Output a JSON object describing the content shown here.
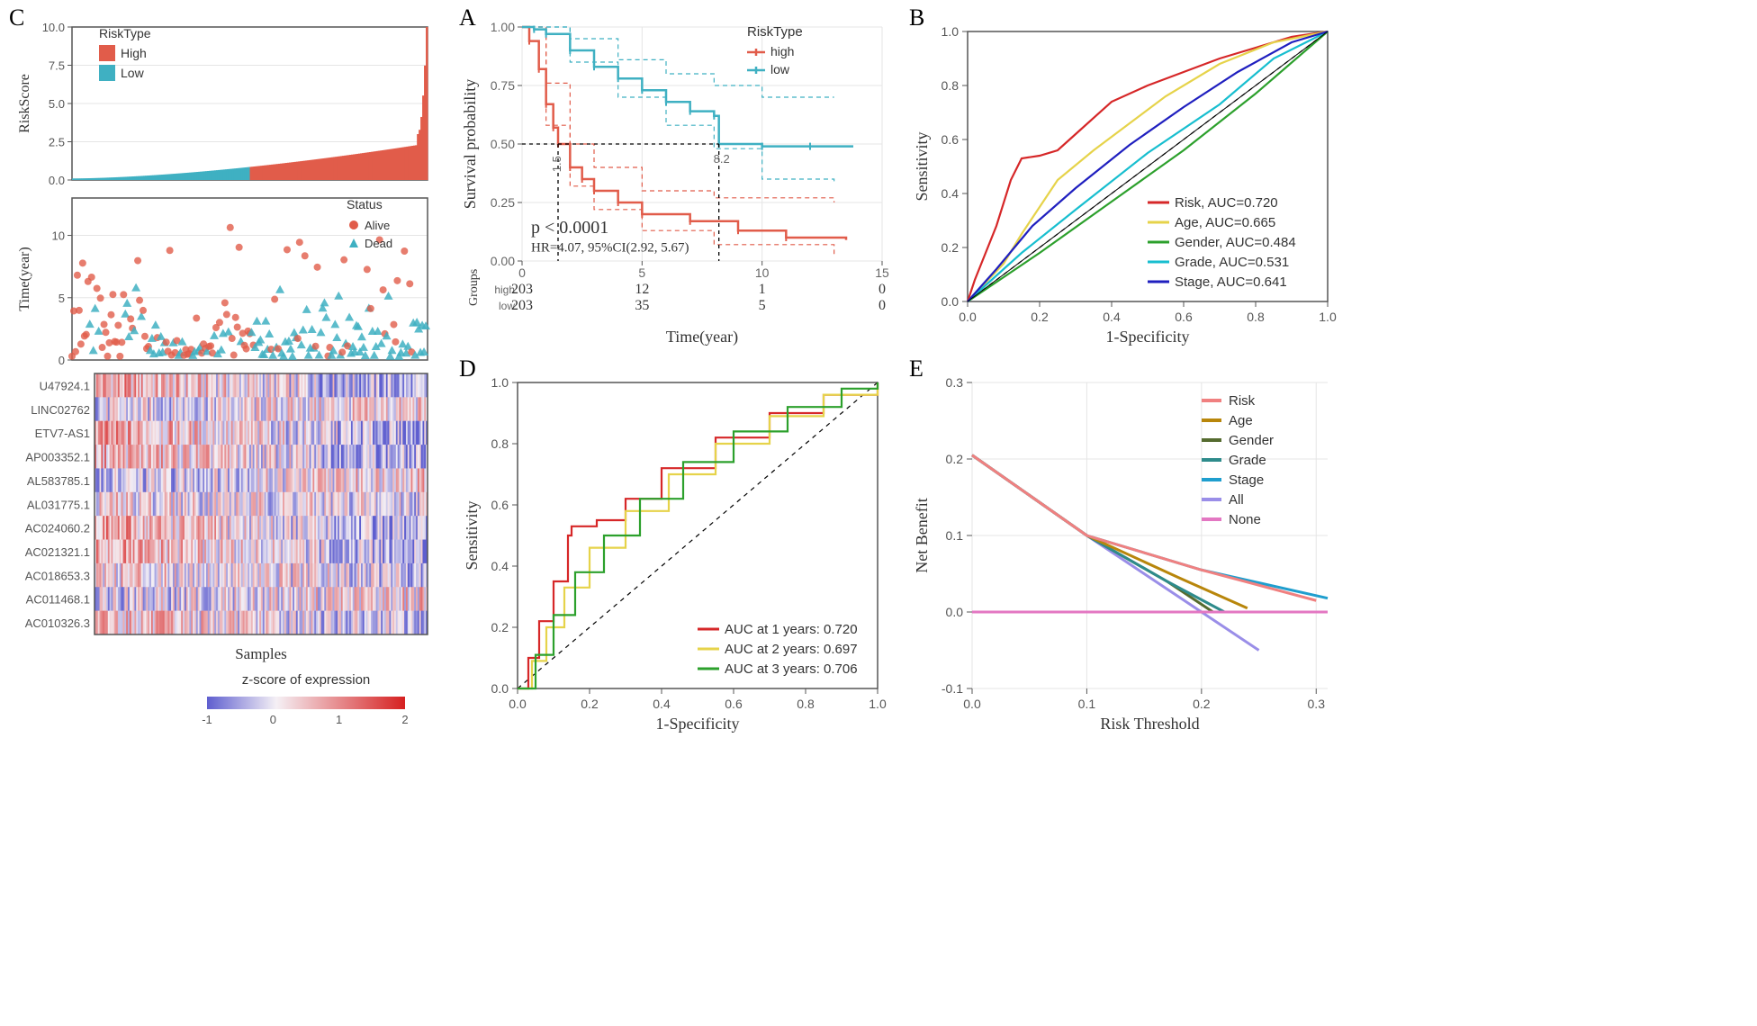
{
  "colors": {
    "high": "#e15c4a",
    "low": "#3fb0c2",
    "risk": "#d62728",
    "age": "#e6d34a",
    "gender": "#2ca02c",
    "grade": "#17becf",
    "stage": "#1f1fbf",
    "all": "#9a8ee8",
    "none": "#e377c2",
    "dca_risk": "#f08080",
    "dca_age": "#b8860b",
    "dca_gender": "#556b2f",
    "dca_grade": "#2e8b8b",
    "dca_stage": "#1f9ece",
    "grid": "#e5e5e5",
    "axis": "#555555",
    "panel_border": "#555555",
    "heatmap_low": "#5e5ecf",
    "heatmap_mid": "#f5f0f5",
    "heatmap_high": "#d62020"
  },
  "panelA": {
    "label": "A",
    "y_label": "Survival probability",
    "x_label": "Time(year)",
    "groups_label": "Groups",
    "legend_title": "RiskType",
    "legend_items": [
      "high",
      "low"
    ],
    "pval": "p < 0.0001",
    "hr": "HR=4.07, 95%CI(2.92, 5.67)",
    "median_marks": {
      "high": "1.5",
      "low": "8.2"
    },
    "x_ticks": [
      0,
      5,
      10,
      15
    ],
    "y_ticks": [
      0.0,
      0.25,
      0.5,
      0.75,
      1.0
    ],
    "risk_table": {
      "rows": [
        "high",
        "low"
      ],
      "values": [
        [
          "203",
          "12",
          "1",
          "0"
        ],
        [
          "203",
          "35",
          "5",
          "0"
        ]
      ]
    },
    "km": {
      "high": {
        "x": [
          0,
          0.3,
          0.7,
          1,
          1.3,
          1.5,
          2,
          2.5,
          3,
          4,
          5,
          7,
          9,
          11,
          13.5
        ],
        "y": [
          1.0,
          0.94,
          0.82,
          0.67,
          0.57,
          0.5,
          0.4,
          0.35,
          0.3,
          0.25,
          0.2,
          0.17,
          0.13,
          0.1,
          0.09
        ]
      },
      "low": {
        "x": [
          0,
          0.5,
          1,
          2,
          3,
          4,
          5,
          6,
          7,
          8,
          8.2,
          10,
          12,
          13.8
        ],
        "y": [
          1.0,
          0.99,
          0.97,
          0.9,
          0.83,
          0.78,
          0.73,
          0.68,
          0.64,
          0.62,
          0.5,
          0.49,
          0.49,
          0.49
        ]
      },
      "high_ci_upper": {
        "x": [
          0,
          1,
          2,
          3,
          5,
          8,
          13
        ],
        "y": [
          1.0,
          0.76,
          0.5,
          0.4,
          0.3,
          0.27,
          0.25
        ]
      },
      "high_ci_lower": {
        "x": [
          0,
          1,
          2,
          3,
          5,
          8,
          13
        ],
        "y": [
          1.0,
          0.58,
          0.32,
          0.22,
          0.13,
          0.07,
          0.03
        ]
      },
      "low_ci_upper": {
        "x": [
          0,
          2,
          4,
          6,
          8,
          10,
          13
        ],
        "y": [
          1.0,
          0.95,
          0.86,
          0.8,
          0.75,
          0.7,
          0.7
        ]
      },
      "low_ci_lower": {
        "x": [
          0,
          2,
          4,
          6,
          8,
          10,
          13
        ],
        "y": [
          1.0,
          0.85,
          0.7,
          0.58,
          0.48,
          0.35,
          0.34
        ]
      }
    }
  },
  "panelB": {
    "label": "B",
    "y_label": "Sensitivity",
    "x_label": "1-Specificity",
    "x_ticks": [
      0.0,
      0.2,
      0.4,
      0.6,
      0.8,
      1.0
    ],
    "y_ticks": [
      0.0,
      0.2,
      0.4,
      0.6,
      0.8,
      1.0
    ],
    "legend": [
      {
        "label": "Risk, AUC=0.720",
        "color_key": "risk"
      },
      {
        "label": "Age, AUC=0.665",
        "color_key": "age"
      },
      {
        "label": "Gender, AUC=0.484",
        "color_key": "gender"
      },
      {
        "label": "Grade, AUC=0.531",
        "color_key": "grade"
      },
      {
        "label": "Stage, AUC=0.641",
        "color_key": "stage"
      }
    ],
    "roc": {
      "risk": {
        "x": [
          0,
          0.02,
          0.05,
          0.08,
          0.12,
          0.15,
          0.2,
          0.25,
          0.3,
          0.4,
          0.5,
          0.6,
          0.7,
          0.8,
          0.9,
          1.0
        ],
        "y": [
          0,
          0.08,
          0.18,
          0.28,
          0.45,
          0.53,
          0.54,
          0.56,
          0.62,
          0.74,
          0.8,
          0.85,
          0.9,
          0.94,
          0.98,
          1.0
        ]
      },
      "age": {
        "x": [
          0,
          0.05,
          0.1,
          0.15,
          0.25,
          0.35,
          0.45,
          0.55,
          0.7,
          0.85,
          1.0
        ],
        "y": [
          0,
          0.07,
          0.14,
          0.25,
          0.45,
          0.56,
          0.66,
          0.76,
          0.88,
          0.96,
          1.0
        ]
      },
      "gender": {
        "x": [
          0,
          0.2,
          0.4,
          0.6,
          0.8,
          1.0
        ],
        "y": [
          0,
          0.18,
          0.37,
          0.56,
          0.77,
          1.0
        ]
      },
      "grade": {
        "x": [
          0,
          0.15,
          0.3,
          0.5,
          0.7,
          0.85,
          1.0
        ],
        "y": [
          0,
          0.18,
          0.34,
          0.55,
          0.73,
          0.9,
          1.0
        ]
      },
      "stage": {
        "x": [
          0,
          0.08,
          0.18,
          0.3,
          0.45,
          0.6,
          0.75,
          0.9,
          1.0
        ],
        "y": [
          0,
          0.12,
          0.28,
          0.42,
          0.58,
          0.72,
          0.85,
          0.96,
          1.0
        ]
      }
    }
  },
  "panelC": {
    "label": "C",
    "riskscore": {
      "y_label": "RiskScore",
      "y_ticks": [
        0.0,
        2.5,
        5.0,
        7.5,
        10.0
      ],
      "legend_title": "RiskType",
      "legend_items": [
        "High",
        "Low"
      ],
      "n": 200,
      "split": 100
    },
    "scatter": {
      "y_label": "Time(year)",
      "y_ticks": [
        0,
        5,
        10
      ],
      "legend_title": "Status",
      "legend_items": [
        "Alive",
        "Dead"
      ]
    },
    "heatmap": {
      "rows": [
        "U47924.1",
        "LINC02762",
        "ETV7-AS1",
        "AP003352.1",
        "AL583785.1",
        "AL031775.1",
        "AC024060.2",
        "AC021321.1",
        "AC018653.3",
        "AC011468.1",
        "AC010326.3"
      ],
      "x_label": "Samples",
      "colorbar_label": "z-score of expression",
      "colorbar_ticks": [
        -1,
        0,
        1,
        2
      ]
    }
  },
  "panelD": {
    "label": "D",
    "y_label": "Sensitivity",
    "x_label": "1-Specificity",
    "x_ticks": [
      0.0,
      0.2,
      0.4,
      0.6,
      0.8,
      1.0
    ],
    "y_ticks": [
      0.0,
      0.2,
      0.4,
      0.6,
      0.8,
      1.0
    ],
    "legend": [
      {
        "label": "AUC at 1 years: 0.720",
        "color_key": "risk"
      },
      {
        "label": "AUC at 2 years: 0.697",
        "color_key": "age"
      },
      {
        "label": "AUC at 3 years: 0.706",
        "color_key": "gender"
      }
    ],
    "roc": {
      "y1": {
        "x": [
          0,
          0.03,
          0.06,
          0.1,
          0.14,
          0.15,
          0.22,
          0.3,
          0.4,
          0.55,
          0.7,
          0.85,
          1.0
        ],
        "y": [
          0,
          0.1,
          0.22,
          0.35,
          0.5,
          0.53,
          0.55,
          0.62,
          0.72,
          0.82,
          0.9,
          0.96,
          1.0
        ]
      },
      "y2": {
        "x": [
          0,
          0.04,
          0.08,
          0.13,
          0.2,
          0.3,
          0.42,
          0.55,
          0.7,
          0.85,
          1.0
        ],
        "y": [
          0,
          0.09,
          0.2,
          0.33,
          0.46,
          0.58,
          0.7,
          0.8,
          0.89,
          0.96,
          1.0
        ]
      },
      "y3": {
        "x": [
          0,
          0.05,
          0.1,
          0.16,
          0.24,
          0.34,
          0.46,
          0.6,
          0.75,
          0.9,
          1.0
        ],
        "y": [
          0,
          0.11,
          0.24,
          0.38,
          0.5,
          0.62,
          0.74,
          0.84,
          0.92,
          0.98,
          1.0
        ]
      }
    }
  },
  "panelE": {
    "label": "E",
    "y_label": "Net Benefit",
    "x_label": "Risk Threshold",
    "x_ticks": [
      0.0,
      0.1,
      0.2,
      0.3
    ],
    "y_ticks": [
      -0.1,
      0.0,
      0.1,
      0.2,
      0.3
    ],
    "legend": [
      {
        "label": "Risk",
        "color_key": "dca_risk"
      },
      {
        "label": "Age",
        "color_key": "dca_age"
      },
      {
        "label": "Gender",
        "color_key": "dca_gender"
      },
      {
        "label": "Grade",
        "color_key": "dca_grade"
      },
      {
        "label": "Stage",
        "color_key": "dca_stage"
      },
      {
        "label": "All",
        "color_key": "all"
      },
      {
        "label": "None",
        "color_key": "none"
      }
    ],
    "curves": {
      "all": {
        "x": [
          0.0,
          0.1,
          0.15,
          0.2,
          0.25
        ],
        "y": [
          0.205,
          0.1,
          0.05,
          0.0,
          -0.05
        ]
      },
      "risk": {
        "x": [
          0.0,
          0.1,
          0.2,
          0.3
        ],
        "y": [
          0.205,
          0.1,
          0.055,
          0.015
        ]
      },
      "age": {
        "x": [
          0.0,
          0.1,
          0.18,
          0.24
        ],
        "y": [
          0.205,
          0.1,
          0.045,
          0.005
        ]
      },
      "gender": {
        "x": [
          0.0,
          0.1,
          0.17,
          0.21
        ],
        "y": [
          0.205,
          0.1,
          0.04,
          0.0
        ]
      },
      "grade": {
        "x": [
          0.0,
          0.1,
          0.17,
          0.22
        ],
        "y": [
          0.205,
          0.1,
          0.04,
          0.0
        ]
      },
      "stage": {
        "x": [
          0.0,
          0.1,
          0.2,
          0.31
        ],
        "y": [
          0.205,
          0.1,
          0.055,
          0.018
        ]
      },
      "none": {
        "x": [
          0.0,
          0.31
        ],
        "y": [
          0.0,
          0.0
        ]
      }
    }
  }
}
